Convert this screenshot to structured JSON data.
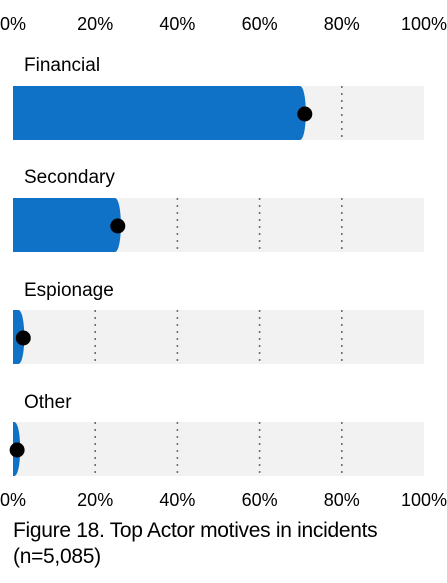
{
  "chart_data": {
    "type": "bar",
    "orientation": "horizontal",
    "categories": [
      "Financial",
      "Secondary",
      "Espionage",
      "Other"
    ],
    "values": [
      71,
      26,
      2.5,
      1.5
    ],
    "points": [
      71,
      25.5,
      2.5,
      1
    ],
    "xlim": [
      0,
      100
    ],
    "x_ticks": [
      "0%",
      "20%",
      "40%",
      "60%",
      "80%",
      "100%"
    ],
    "x_tick_positions": "top-and-bottom",
    "grid": "dotted vertical",
    "title": "Figure 18. Top Actor motives in incidents",
    "subtitle": "(n=5,085)"
  },
  "colors": {
    "bar": "#0f72c6",
    "track": "#f2f2f2",
    "point": "#000000",
    "grid": "#6f6f6f",
    "text": "#000000"
  }
}
